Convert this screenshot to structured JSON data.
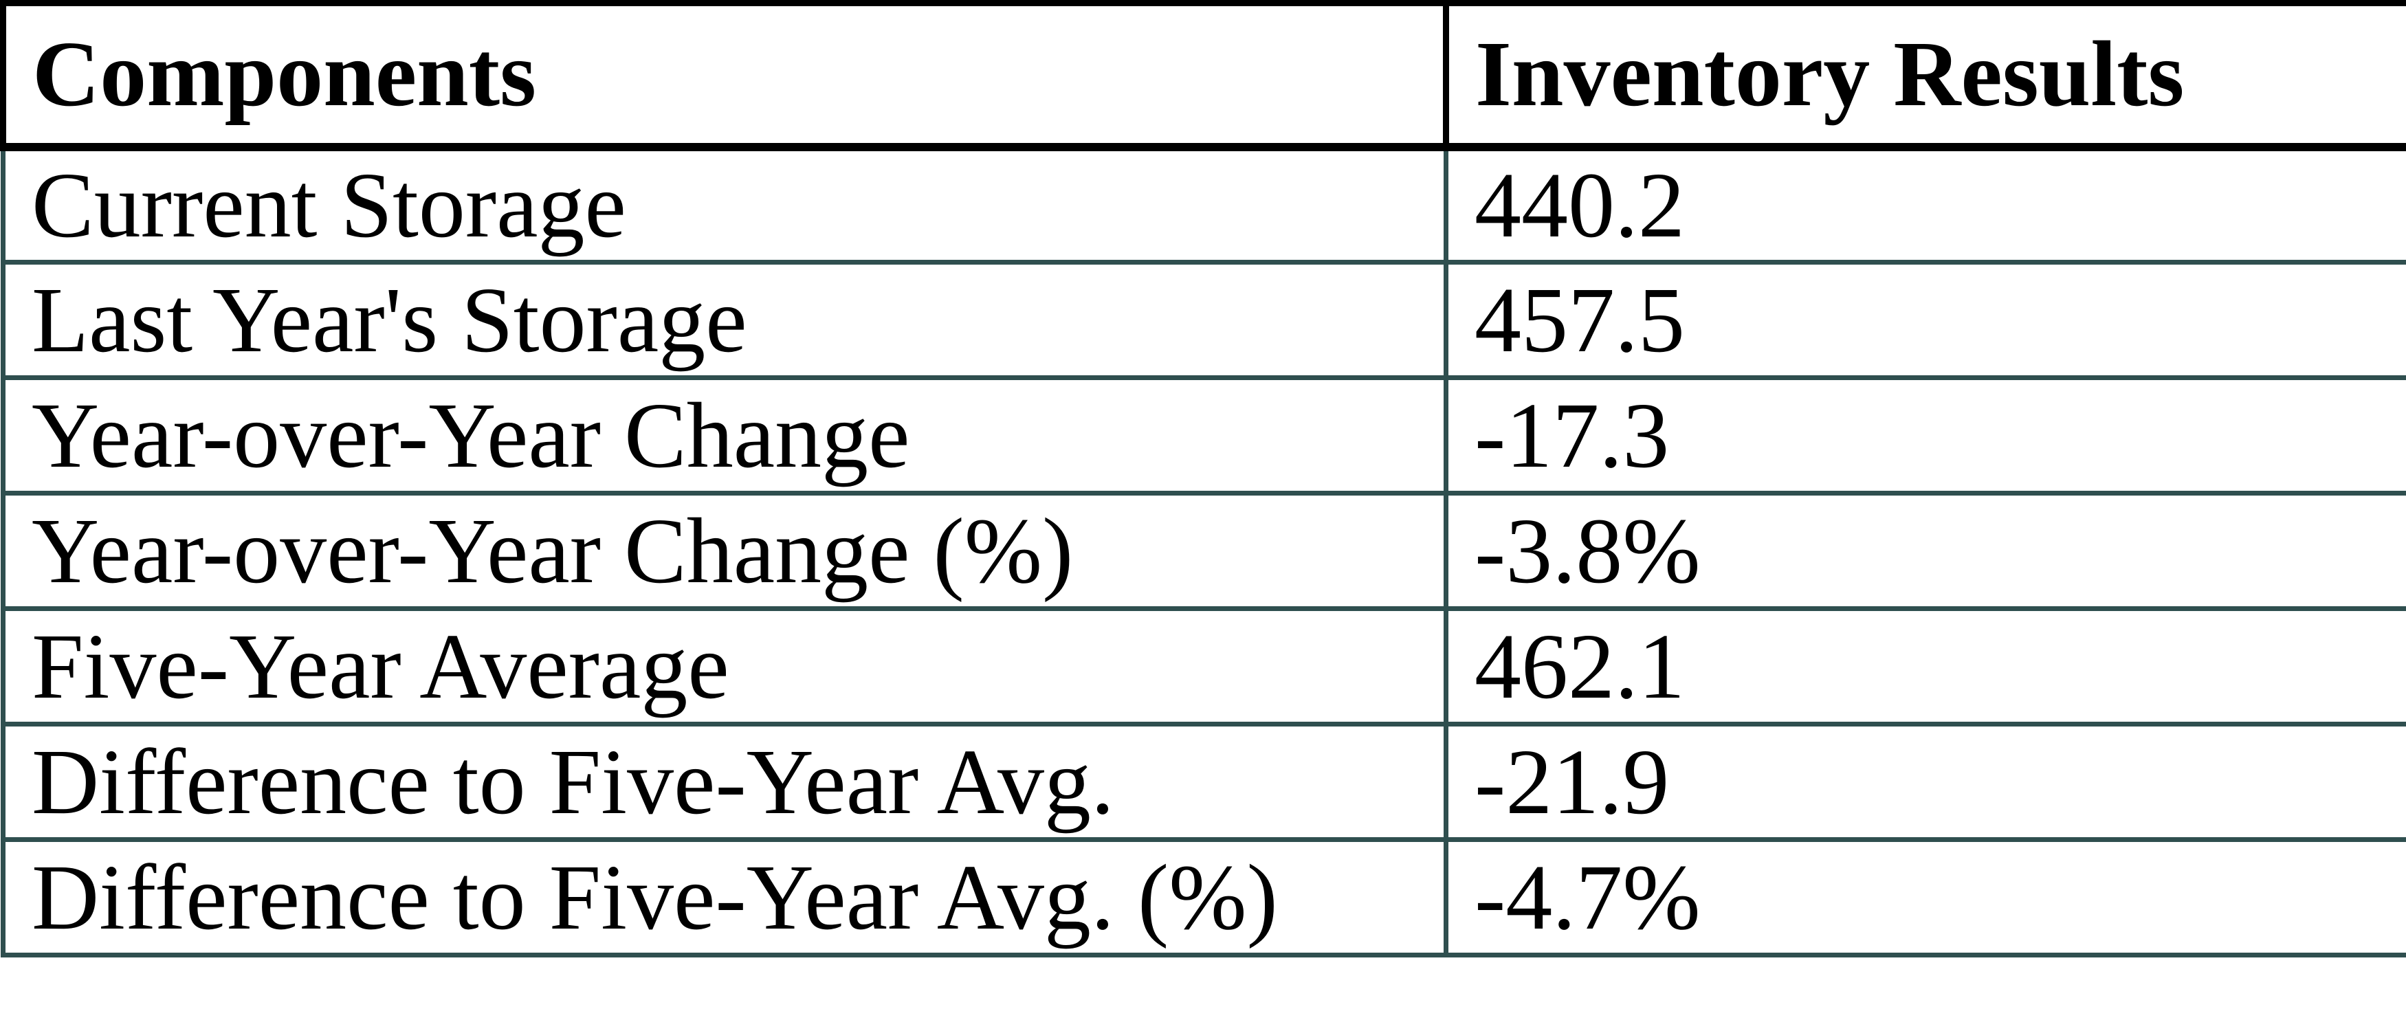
{
  "chart_data": {
    "type": "table",
    "columns": [
      "Components",
      "Inventory Results"
    ],
    "rows": [
      [
        "Current Storage",
        "440.2"
      ],
      [
        "Last Year's Storage",
        "457.5"
      ],
      [
        "Year-over-Year Change",
        "-17.3"
      ],
      [
        "Year-over-Year Change (%)",
        "-3.8%"
      ],
      [
        "Five-Year Average",
        "462.1"
      ],
      [
        "Difference to Five-Year Avg.",
        "-21.9"
      ],
      [
        "Difference to Five-Year Avg. (%)",
        "-4.7%"
      ]
    ],
    "layout": {
      "header_style": "bold",
      "grid": "on"
    }
  },
  "colors": {
    "header_border": "#000000",
    "body_border": "#2F4F4F",
    "text": "#000000",
    "background": "#FFFFFF"
  }
}
